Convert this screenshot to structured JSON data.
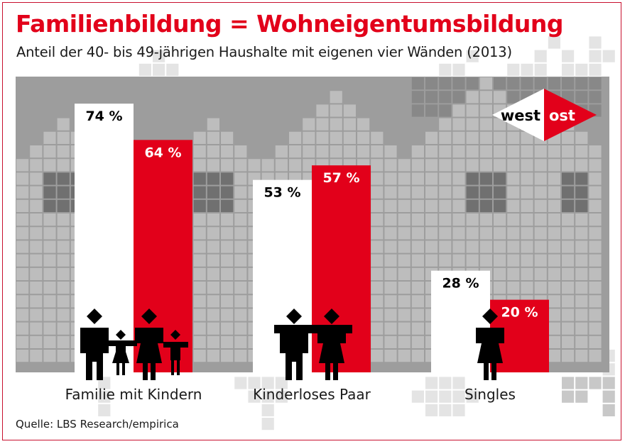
{
  "header": {
    "title": "Familienbildung = Wohneigentumsbildung",
    "subtitle": "Anteil der 40- bis 49-jährigen Haushalte mit eigenen vier Wänden (2013)"
  },
  "footer": {
    "source": "Quelle: LBS Research/empirica"
  },
  "colors": {
    "accent": "#e2001a",
    "west": "#ffffff",
    "ost": "#e2001a",
    "panel": "#9d9d9d",
    "figure": "#000000"
  },
  "chart_data": {
    "type": "bar",
    "title": "Familienbildung = Wohneigentumsbildung",
    "subtitle": "Anteil der 40- bis 49-jährigen Haushalte mit eigenen vier Wänden (2013)",
    "xlabel": "",
    "ylabel": "",
    "unit": "%",
    "ylim": [
      0,
      80
    ],
    "grid": false,
    "legend": {
      "placement": "top-right",
      "entries": [
        "west",
        "ost"
      ]
    },
    "categories": [
      "Familie mit Kindern",
      "Kinderloses Paar",
      "Singles"
    ],
    "category_icons": [
      "family-with-children-icon",
      "couple-icon",
      "single-person-icon"
    ],
    "series": [
      {
        "name": "west",
        "color": "#ffffff",
        "label_color": "#000000",
        "values": [
          74,
          53,
          28
        ],
        "labels": [
          "74 %",
          "53 %",
          "28 %"
        ]
      },
      {
        "name": "ost",
        "color": "#e2001a",
        "label_color": "#ffffff",
        "values": [
          64,
          57,
          20
        ],
        "labels": [
          "64 %",
          "57 %",
          "20 %"
        ]
      }
    ],
    "source": "Quelle: LBS Research/empirica"
  }
}
